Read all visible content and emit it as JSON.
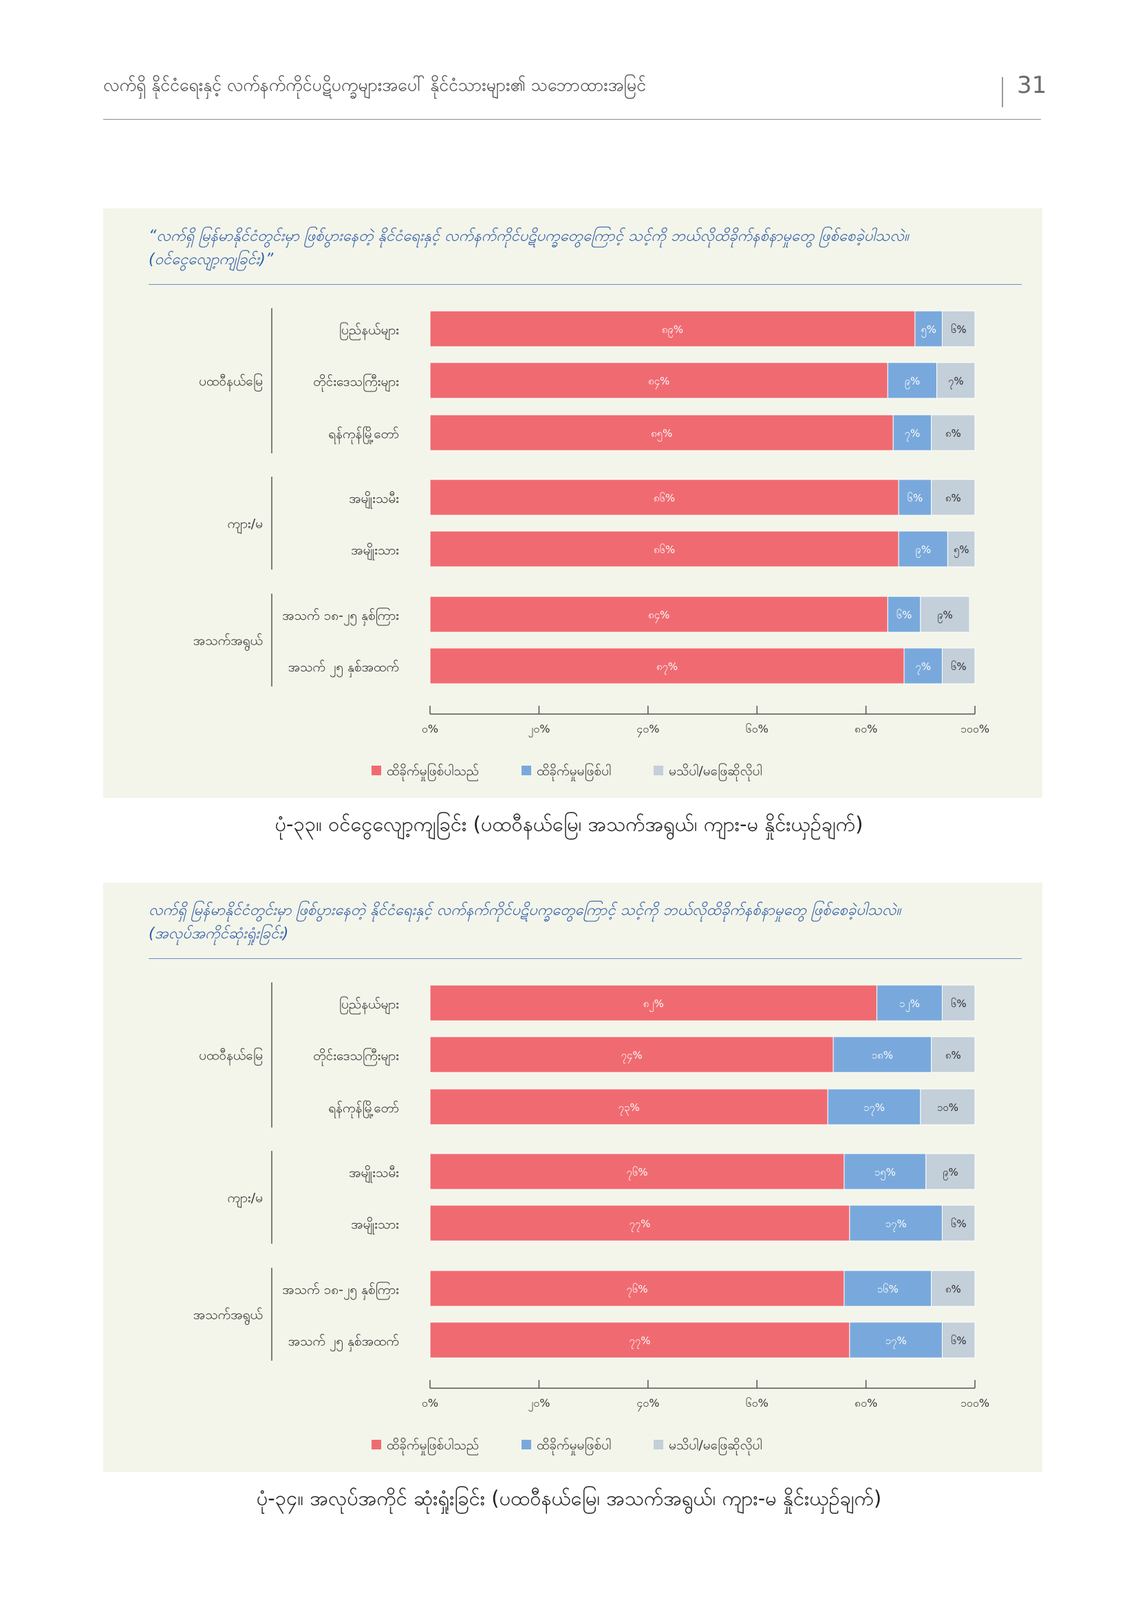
{
  "header": {
    "title": "လက်ရှိ နိုင်ငံရေးနှင့် လက်နက်ကိုင်ပဋိပက္ခများအပေါ် နိုင်ငံသားများ၏ သဘောထားအမြင်",
    "page_number": "31"
  },
  "legend": {
    "affected": "ထိခိုက်မှုဖြစ်ပါသည်",
    "not_affected": "ထိခိုက်မှုမဖြစ်ပါ",
    "dont_know": "မသိပါ/မဖြေဆိုလိုပါ"
  },
  "colors": {
    "affected": "#f06b71",
    "not_affected": "#79a9dc",
    "dont_know": "#c3cfd9"
  },
  "chart_data": [
    {
      "type": "bar",
      "orientation": "horizontal-stacked",
      "question": "“လက်ရှိ မြန်မာနိုင်ငံတွင်းမှာ ဖြစ်ပွားနေတဲ့ နိုင်ငံရေးနှင့် လက်နက်ကိုင်ပဋိပက္ခတွေကြောင့် သင့်ကို ဘယ်လိုထိခိုက်နစ်နာမှုတွေ ဖြစ်စေခဲ့ပါသလဲ။",
      "question_line2": "(ဝင်ငွေလျော့ကျခြင်း)”",
      "caption": "ပုံ-၃၃။ ဝင်ငွေလျော့ကျခြင်း (ပထဝီနယ်မြေ၊ အသက်အရွယ်၊ ကျား-မ နှိုင်းယှဉ်ချက်)",
      "groups": [
        {
          "label": "ပထဝီနယ်မြေ",
          "categories": [
            "ပြည်နယ်များ",
            "တိုင်းဒေသကြီးများ",
            "ရန်ကုန်မြို့တော်"
          ]
        },
        {
          "label": "ကျား/မ",
          "categories": [
            "အမျိုးသမီး",
            "အမျိုးသား"
          ]
        },
        {
          "label": "အသက်အရွယ်",
          "categories": [
            "အသက် ၁၈-၂၅ နှစ်ကြား",
            "အသက် ၂၅ နှစ်အထက်"
          ]
        }
      ],
      "series": [
        {
          "key": "affected",
          "values": [
            89,
            84,
            85,
            86,
            86,
            84,
            87
          ],
          "labels": [
            "၈၉%",
            "၈၄%",
            "၈၅%",
            "၈၆%",
            "၈၆%",
            "၈၄%",
            "၈၇%"
          ]
        },
        {
          "key": "not_affected",
          "values": [
            5,
            9,
            7,
            6,
            9,
            6,
            7
          ],
          "labels": [
            "၅%",
            "၉%",
            "၇%",
            "၆%",
            "၉%",
            "၆%",
            "၇%"
          ]
        },
        {
          "key": "dont_know",
          "values": [
            6,
            7,
            8,
            8,
            5,
            9,
            6
          ],
          "labels": [
            "၆%",
            "၇%",
            "၈%",
            "၈%",
            "၅%",
            "၉%",
            "၆%"
          ]
        }
      ],
      "xlim": [
        0,
        100
      ],
      "xticks": [
        "၀%",
        "၂၀%",
        "၄၀%",
        "၆၀%",
        "၈၀%",
        "၁၀၀%"
      ]
    },
    {
      "type": "bar",
      "orientation": "horizontal-stacked",
      "question": "လက်ရှိ မြန်မာနိုင်ငံတွင်းမှာ ဖြစ်ပွားနေတဲ့ နိုင်ငံရေးနှင့် လက်နက်ကိုင်ပဋိပက္ခတွေကြောင့် သင့်ကို ဘယ်လိုထိခိုက်နစ်နာမှုတွေ ဖြစ်စေခဲ့ပါသလဲ။",
      "question_line2": "(အလုပ်အကိုင်ဆုံးရှုံးခြင်း)",
      "caption": "ပုံ-၃၄။ အလုပ်အကိုင် ဆုံးရှုံးခြင်း (ပထဝီနယ်မြေ၊ အသက်အရွယ်၊ ကျား-မ နှိုင်းယှဉ်ချက်)",
      "groups": [
        {
          "label": "ပထဝီနယ်မြေ",
          "categories": [
            "ပြည်နယ်များ",
            "တိုင်းဒေသကြီးများ",
            "ရန်ကုန်မြို့တော်"
          ]
        },
        {
          "label": "ကျား/မ",
          "categories": [
            "အမျိုးသမီး",
            "အမျိုးသား"
          ]
        },
        {
          "label": "အသက်အရွယ်",
          "categories": [
            "အသက် ၁၈-၂၅ နှစ်ကြား",
            "အသက် ၂၅ နှစ်အထက်"
          ]
        }
      ],
      "series": [
        {
          "key": "affected",
          "values": [
            82,
            74,
            73,
            76,
            77,
            76,
            77
          ],
          "labels": [
            "၈၂%",
            "၇၄%",
            "၇၃%",
            "၇၆%",
            "၇၇%",
            "၇၆%",
            "၇၇%"
          ]
        },
        {
          "key": "not_affected",
          "values": [
            12,
            18,
            17,
            15,
            17,
            16,
            17
          ],
          "labels": [
            "၁၂%",
            "၁၈%",
            "၁၇%",
            "၁၅%",
            "၁၇%",
            "၁၆%",
            "၁၇%"
          ]
        },
        {
          "key": "dont_know",
          "values": [
            6,
            8,
            10,
            9,
            6,
            8,
            6
          ],
          "labels": [
            "၆%",
            "၈%",
            "၁၀%",
            "၉%",
            "၆%",
            "၈%",
            "၆%"
          ]
        }
      ],
      "xlim": [
        0,
        100
      ],
      "xticks": [
        "၀%",
        "၂၀%",
        "၄၀%",
        "၆၀%",
        "၈၀%",
        "၁၀၀%"
      ]
    }
  ]
}
